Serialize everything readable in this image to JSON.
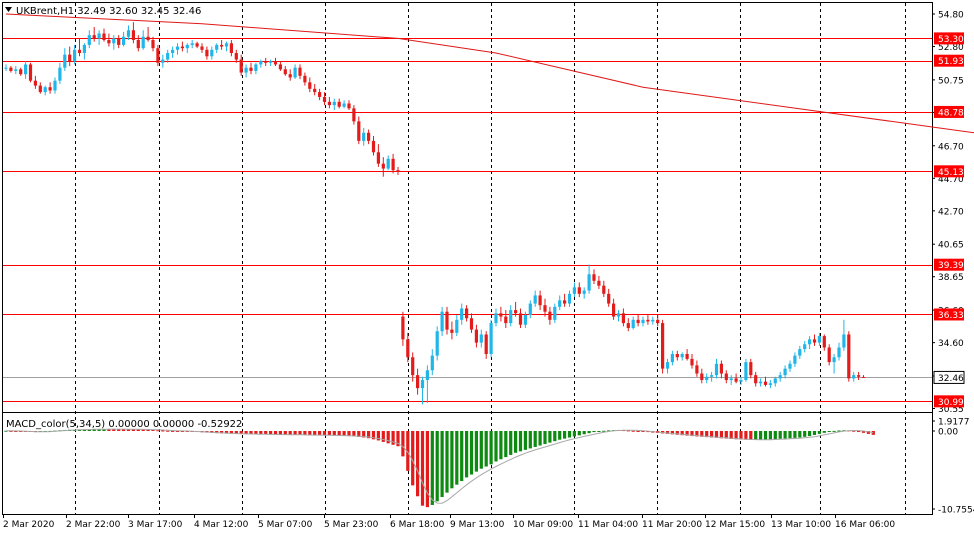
{
  "header": {
    "symbol_line": "UKBrent,H1  32.49 32.60 32.45 32.46"
  },
  "macd_header": "MACD_color(5,34,5) 0.00000 0.00000 -0.52922",
  "colors": {
    "up": "#21b6e9",
    "down": "#e31b1b",
    "level": "#ff0000",
    "ma": "#e01818",
    "macd_up": "#0d8a10",
    "macd_down": "#e31b1b",
    "signal": "#a8a8a8",
    "grid": "#000000",
    "current_price_line": "#a0a0a0"
  },
  "chart_data": {
    "type": "candlestick",
    "title": "UKBrent,H1",
    "y_ticks": [
      "54.80",
      "52.80",
      "50.75",
      "48.75",
      "46.70",
      "44.70",
      "42.70",
      "40.65",
      "38.65",
      "36.60",
      "34.60",
      "32.55",
      "30.55"
    ],
    "ylim": [
      30.3,
      55.2
    ],
    "x_ticks": [
      "2 Mar 2020",
      "2 Mar 22:00",
      "3 Mar 17:00",
      "4 Mar 12:00",
      "5 Mar 07:00",
      "5 Mar 23:00",
      "6 Mar 18:00",
      "9 Mar 13:00",
      "10 Mar 09:00",
      "11 Mar 04:00",
      "11 Mar 20:00",
      "12 Mar 15:00",
      "13 Mar 10:00",
      "16 Mar 06:00"
    ],
    "levels": [
      {
        "value": 53.3,
        "label": "53.30"
      },
      {
        "value": 51.93,
        "label": "51.93"
      },
      {
        "value": 48.78,
        "label": "48.78"
      },
      {
        "value": 45.13,
        "label": "45.13"
      },
      {
        "value": 39.39,
        "label": "39.39"
      },
      {
        "value": 36.33,
        "label": "36.33"
      },
      {
        "value": 30.99,
        "label": "30.99"
      }
    ],
    "current_price": {
      "value": 32.46,
      "label": "32.46"
    },
    "moving_average": [
      [
        0,
        54.8
      ],
      [
        40,
        54.2
      ],
      [
        80,
        53.3
      ],
      [
        100,
        52.4
      ],
      [
        130,
        50.3
      ],
      [
        200,
        47.4
      ],
      [
        265,
        44.9
      ],
      [
        333,
        42.4
      ]
    ],
    "macd_axis": {
      "ticks": [
        "1.9177",
        "0.00",
        "-10.7554"
      ],
      "ylim": [
        -10.7554,
        1.9177
      ]
    },
    "candles": [
      [
        51.5,
        51.7,
        51.3,
        51.5
      ],
      [
        51.5,
        51.6,
        51.2,
        51.3
      ],
      [
        51.3,
        51.6,
        51.1,
        51.4
      ],
      [
        51.4,
        51.5,
        51.0,
        51.1
      ],
      [
        51.1,
        51.9,
        50.8,
        51.7
      ],
      [
        51.7,
        51.8,
        50.6,
        50.7
      ],
      [
        50.7,
        51.0,
        50.2,
        50.4
      ],
      [
        50.4,
        50.6,
        49.9,
        50.0
      ],
      [
        50.0,
        50.4,
        49.8,
        50.3
      ],
      [
        50.3,
        50.6,
        49.9,
        50.1
      ],
      [
        50.1,
        50.9,
        49.9,
        50.7
      ],
      [
        50.7,
        51.8,
        50.5,
        51.5
      ],
      [
        51.5,
        52.7,
        51.3,
        52.3
      ],
      [
        52.3,
        52.8,
        51.6,
        51.9
      ],
      [
        51.9,
        52.9,
        51.7,
        52.6
      ],
      [
        52.6,
        53.3,
        52.2,
        52.4
      ],
      [
        52.4,
        53.0,
        52.0,
        52.9
      ],
      [
        52.9,
        53.8,
        52.7,
        53.5
      ],
      [
        53.5,
        54.0,
        53.1,
        53.3
      ],
      [
        53.3,
        53.8,
        52.9,
        53.6
      ],
      [
        53.6,
        53.9,
        53.1,
        53.2
      ],
      [
        53.2,
        53.6,
        52.8,
        53.0
      ],
      [
        53.0,
        53.5,
        52.6,
        53.3
      ],
      [
        53.3,
        53.5,
        52.7,
        52.9
      ],
      [
        52.9,
        53.7,
        52.8,
        53.4
      ],
      [
        53.4,
        54.1,
        53.2,
        53.8
      ],
      [
        53.8,
        54.3,
        53.0,
        53.2
      ],
      [
        53.2,
        53.5,
        52.5,
        52.7
      ],
      [
        52.7,
        53.8,
        52.6,
        53.4
      ],
      [
        53.4,
        54.0,
        53.1,
        53.2
      ],
      [
        53.2,
        53.4,
        52.5,
        52.7
      ],
      [
        52.7,
        52.9,
        51.6,
        51.8
      ],
      [
        51.8,
        52.3,
        51.5,
        52.0
      ],
      [
        52.0,
        52.6,
        51.8,
        52.4
      ],
      [
        52.4,
        52.8,
        52.1,
        52.6
      ],
      [
        52.6,
        53.0,
        52.3,
        52.8
      ],
      [
        52.8,
        53.1,
        52.5,
        52.7
      ],
      [
        52.7,
        53.0,
        52.4,
        52.9
      ],
      [
        52.9,
        53.2,
        52.7,
        53.0
      ],
      [
        53.0,
        53.1,
        52.7,
        52.8
      ],
      [
        52.8,
        53.0,
        52.4,
        52.6
      ],
      [
        52.6,
        52.8,
        52.0,
        52.2
      ],
      [
        52.2,
        52.8,
        52.0,
        52.6
      ],
      [
        52.6,
        53.0,
        52.4,
        52.9
      ],
      [
        52.9,
        53.2,
        52.6,
        52.8
      ],
      [
        52.8,
        53.1,
        52.5,
        53.0
      ],
      [
        53.0,
        53.2,
        52.2,
        52.4
      ],
      [
        52.4,
        52.6,
        51.8,
        52.0
      ],
      [
        52.0,
        52.3,
        51.0,
        51.2
      ],
      [
        51.2,
        51.7,
        50.9,
        51.5
      ],
      [
        51.5,
        51.8,
        51.1,
        51.3
      ],
      [
        51.3,
        51.8,
        51.1,
        51.7
      ],
      [
        51.7,
        52.0,
        51.5,
        51.9
      ],
      [
        51.9,
        52.1,
        51.6,
        51.8
      ],
      [
        51.8,
        52.0,
        51.6,
        51.9
      ],
      [
        51.9,
        52.1,
        51.6,
        51.7
      ],
      [
        51.7,
        51.9,
        51.3,
        51.4
      ],
      [
        51.4,
        51.6,
        51.0,
        51.1
      ],
      [
        51.1,
        51.4,
        50.7,
        50.9
      ],
      [
        50.9,
        51.7,
        50.8,
        51.5
      ],
      [
        51.5,
        51.7,
        50.8,
        51.0
      ],
      [
        51.0,
        51.2,
        50.4,
        50.6
      ],
      [
        50.6,
        50.9,
        50.0,
        50.2
      ],
      [
        50.2,
        50.5,
        49.8,
        50.0
      ],
      [
        50.0,
        50.2,
        49.5,
        49.7
      ],
      [
        49.7,
        50.0,
        49.2,
        49.4
      ],
      [
        49.4,
        49.7,
        49.0,
        49.2
      ],
      [
        49.2,
        49.6,
        48.9,
        49.4
      ],
      [
        49.4,
        49.6,
        49.0,
        49.1
      ],
      [
        49.1,
        49.5,
        49.0,
        49.3
      ],
      [
        49.3,
        49.5,
        48.9,
        49.0
      ],
      [
        49.0,
        49.2,
        48.0,
        48.2
      ],
      [
        48.2,
        48.5,
        46.8,
        47.0
      ],
      [
        47.0,
        47.8,
        46.7,
        47.5
      ],
      [
        47.5,
        47.7,
        46.8,
        47.0
      ],
      [
        47.0,
        47.3,
        46.1,
        46.3
      ],
      [
        46.3,
        46.8,
        45.4,
        45.6
      ],
      [
        45.6,
        46.0,
        44.8,
        45.3
      ],
      [
        45.3,
        46.1,
        45.2,
        45.9
      ],
      [
        45.9,
        46.2,
        45.0,
        45.2
      ],
      [
        45.2,
        45.4,
        44.9,
        45.1
      ],
      [
        36.2,
        36.5,
        34.4,
        34.8
      ],
      [
        34.8,
        35.2,
        33.4,
        33.7
      ],
      [
        33.7,
        34.0,
        32.2,
        32.6
      ],
      [
        32.6,
        33.0,
        31.4,
        31.8
      ],
      [
        31.8,
        32.5,
        30.8,
        32.3
      ],
      [
        32.3,
        33.2,
        30.9,
        32.9
      ],
      [
        32.9,
        34.2,
        32.6,
        33.8
      ],
      [
        33.8,
        35.6,
        33.5,
        35.3
      ],
      [
        35.3,
        36.8,
        35.0,
        36.5
      ],
      [
        36.5,
        36.8,
        35.1,
        35.4
      ],
      [
        35.4,
        35.9,
        34.8,
        35.2
      ],
      [
        35.2,
        36.3,
        35.0,
        36.0
      ],
      [
        36.0,
        37.0,
        35.7,
        36.7
      ],
      [
        36.7,
        36.9,
        35.9,
        36.1
      ],
      [
        36.1,
        36.4,
        35.2,
        35.4
      ],
      [
        35.4,
        35.7,
        34.3,
        34.6
      ],
      [
        34.6,
        35.4,
        34.3,
        35.1
      ],
      [
        35.1,
        35.3,
        33.6,
        33.9
      ],
      [
        33.9,
        36.0,
        33.7,
        35.8
      ],
      [
        35.8,
        36.7,
        35.6,
        36.4
      ],
      [
        36.4,
        36.8,
        35.9,
        36.2
      ],
      [
        36.2,
        36.6,
        35.5,
        35.8
      ],
      [
        35.8,
        36.9,
        35.6,
        36.6
      ],
      [
        36.6,
        37.1,
        36.2,
        36.4
      ],
      [
        36.4,
        36.7,
        35.5,
        35.7
      ],
      [
        35.7,
        36.5,
        35.5,
        36.3
      ],
      [
        36.3,
        37.2,
        36.1,
        37.0
      ],
      [
        37.0,
        37.8,
        36.8,
        37.5
      ],
      [
        37.5,
        37.8,
        36.6,
        36.9
      ],
      [
        36.9,
        37.3,
        36.2,
        36.5
      ],
      [
        36.5,
        36.8,
        35.7,
        36.0
      ],
      [
        36.0,
        37.0,
        35.8,
        36.8
      ],
      [
        36.8,
        37.5,
        36.6,
        37.2
      ],
      [
        37.2,
        37.6,
        36.8,
        37.0
      ],
      [
        37.0,
        37.8,
        36.8,
        37.6
      ],
      [
        37.6,
        38.3,
        37.4,
        38.0
      ],
      [
        38.0,
        38.3,
        37.4,
        37.6
      ],
      [
        37.6,
        38.0,
        37.3,
        37.8
      ],
      [
        37.8,
        39.4,
        37.6,
        38.8
      ],
      [
        38.8,
        39.1,
        38.2,
        38.4
      ],
      [
        38.4,
        38.7,
        37.9,
        38.1
      ],
      [
        38.1,
        38.4,
        37.4,
        37.6
      ],
      [
        37.6,
        37.9,
        36.8,
        37.0
      ],
      [
        37.0,
        37.3,
        36.0,
        36.2
      ],
      [
        36.2,
        36.6,
        35.9,
        36.4
      ],
      [
        36.4,
        36.7,
        35.6,
        35.8
      ],
      [
        35.8,
        36.1,
        35.3,
        35.5
      ],
      [
        35.5,
        36.2,
        35.4,
        36.0
      ],
      [
        36.0,
        36.3,
        35.6,
        35.8
      ],
      [
        35.8,
        36.2,
        35.6,
        36.0
      ],
      [
        36.0,
        36.3,
        35.7,
        35.9
      ],
      [
        35.9,
        36.2,
        35.7,
        36.0
      ],
      [
        36.0,
        36.3,
        35.6,
        35.8
      ],
      [
        35.8,
        36.0,
        32.7,
        33.0
      ],
      [
        33.0,
        33.6,
        32.7,
        33.4
      ],
      [
        33.4,
        34.1,
        33.2,
        33.9
      ],
      [
        33.9,
        34.1,
        33.5,
        33.7
      ],
      [
        33.7,
        34.0,
        33.5,
        33.9
      ],
      [
        33.9,
        34.2,
        33.5,
        33.6
      ],
      [
        33.6,
        33.9,
        33.0,
        33.2
      ],
      [
        33.2,
        33.5,
        32.5,
        32.7
      ],
      [
        32.7,
        33.0,
        32.1,
        32.3
      ],
      [
        32.3,
        32.7,
        32.1,
        32.5
      ],
      [
        32.5,
        32.8,
        32.2,
        32.6
      ],
      [
        32.6,
        33.6,
        32.4,
        33.3
      ],
      [
        33.3,
        33.5,
        32.4,
        32.7
      ],
      [
        32.7,
        32.9,
        32.1,
        32.3
      ],
      [
        32.3,
        32.6,
        32.0,
        32.4
      ],
      [
        32.4,
        32.7,
        32.1,
        32.2
      ],
      [
        32.2,
        32.5,
        32.0,
        32.3
      ],
      [
        32.3,
        33.6,
        32.2,
        33.4
      ],
      [
        33.4,
        33.6,
        32.4,
        32.6
      ],
      [
        32.6,
        32.8,
        31.9,
        32.1
      ],
      [
        32.1,
        32.4,
        31.9,
        32.2
      ],
      [
        32.2,
        32.5,
        31.9,
        32.0
      ],
      [
        32.0,
        32.3,
        31.8,
        32.1
      ],
      [
        32.1,
        32.5,
        31.9,
        32.4
      ],
      [
        32.4,
        32.8,
        32.2,
        32.6
      ],
      [
        32.6,
        33.2,
        32.4,
        33.0
      ],
      [
        33.0,
        33.5,
        32.8,
        33.3
      ],
      [
        33.3,
        34.0,
        33.1,
        33.8
      ],
      [
        33.8,
        34.4,
        33.6,
        34.2
      ],
      [
        34.2,
        34.7,
        34.0,
        34.5
      ],
      [
        34.5,
        35.0,
        34.2,
        34.8
      ],
      [
        34.8,
        35.1,
        34.4,
        34.6
      ],
      [
        34.6,
        35.2,
        34.4,
        35.0
      ],
      [
        35.0,
        35.1,
        34.1,
        34.3
      ],
      [
        34.3,
        34.5,
        33.2,
        33.4
      ],
      [
        33.4,
        33.9,
        32.7,
        33.7
      ],
      [
        33.7,
        34.6,
        33.5,
        34.3
      ],
      [
        34.3,
        36.0,
        34.1,
        35.1
      ],
      [
        35.1,
        35.3,
        32.2,
        32.4
      ],
      [
        32.4,
        32.8,
        32.2,
        32.6
      ],
      [
        32.6,
        32.8,
        32.3,
        32.5
      ],
      [
        32.49,
        32.6,
        32.45,
        32.46
      ]
    ],
    "macd": [
      0.05,
      0.02,
      -0.03,
      -0.06,
      -0.09,
      -0.12,
      -0.15,
      -0.1,
      -0.05,
      0.02,
      0.08,
      0.14,
      0.2,
      0.24,
      0.27,
      0.3,
      0.32,
      0.34,
      0.36,
      0.37,
      0.38,
      0.37,
      0.36,
      0.35,
      0.34,
      0.33,
      0.32,
      0.3,
      0.28,
      0.25,
      0.2,
      0.15,
      0.1,
      0.05,
      0.02,
      0.0,
      -0.03,
      -0.06,
      -0.1,
      -0.14,
      -0.18,
      -0.22,
      -0.26,
      -0.3,
      -0.33,
      -0.36,
      -0.38,
      -0.4,
      -0.42,
      -0.44,
      -0.45,
      -0.46,
      -0.47,
      -0.48,
      -0.49,
      -0.5,
      -0.51,
      -0.52,
      -0.53,
      -0.54,
      -0.55,
      -0.56,
      -0.57,
      -0.58,
      -0.59,
      -0.6,
      -0.62,
      -0.64,
      -0.66,
      -0.68,
      -0.7,
      -0.75,
      -0.82,
      -0.9,
      -1.0,
      -1.15,
      -1.3,
      -1.5,
      -1.7,
      -1.9,
      -2.1,
      -3.5,
      -5.5,
      -7.5,
      -9.0,
      -10.3,
      -10.5,
      -10.2,
      -9.7,
      -9.1,
      -8.5,
      -7.9,
      -7.4,
      -6.9,
      -6.4,
      -6.0,
      -5.6,
      -5.2,
      -4.9,
      -4.6,
      -4.2,
      -3.9,
      -3.6,
      -3.3,
      -3.0,
      -2.8,
      -2.6,
      -2.4,
      -2.2,
      -2.0,
      -1.8,
      -1.6,
      -1.4,
      -1.2,
      -1.05,
      -0.9,
      -0.75,
      -0.6,
      -0.45,
      -0.3,
      -0.15,
      -0.05,
      0.05,
      0.12,
      0.18,
      0.2,
      0.18,
      0.12,
      0.05,
      -0.02,
      -0.08,
      -0.15,
      -0.22,
      -0.28,
      -0.34,
      -0.4,
      -0.46,
      -0.52,
      -0.58,
      -0.64,
      -0.7,
      -0.75,
      -0.8,
      -0.85,
      -0.9,
      -0.95,
      -1.0,
      -1.05,
      -1.1,
      -1.14,
      -1.18,
      -1.2,
      -1.22,
      -1.22,
      -1.2,
      -1.18,
      -1.15,
      -1.12,
      -1.08,
      -1.04,
      -1.0,
      -0.95,
      -0.9,
      -0.8,
      -0.7,
      -0.55,
      -0.4,
      -0.25,
      -0.1,
      0.02,
      0.1,
      0.15,
      0.12,
      0.05,
      -0.05,
      -0.25,
      -0.4,
      -0.53
    ]
  }
}
